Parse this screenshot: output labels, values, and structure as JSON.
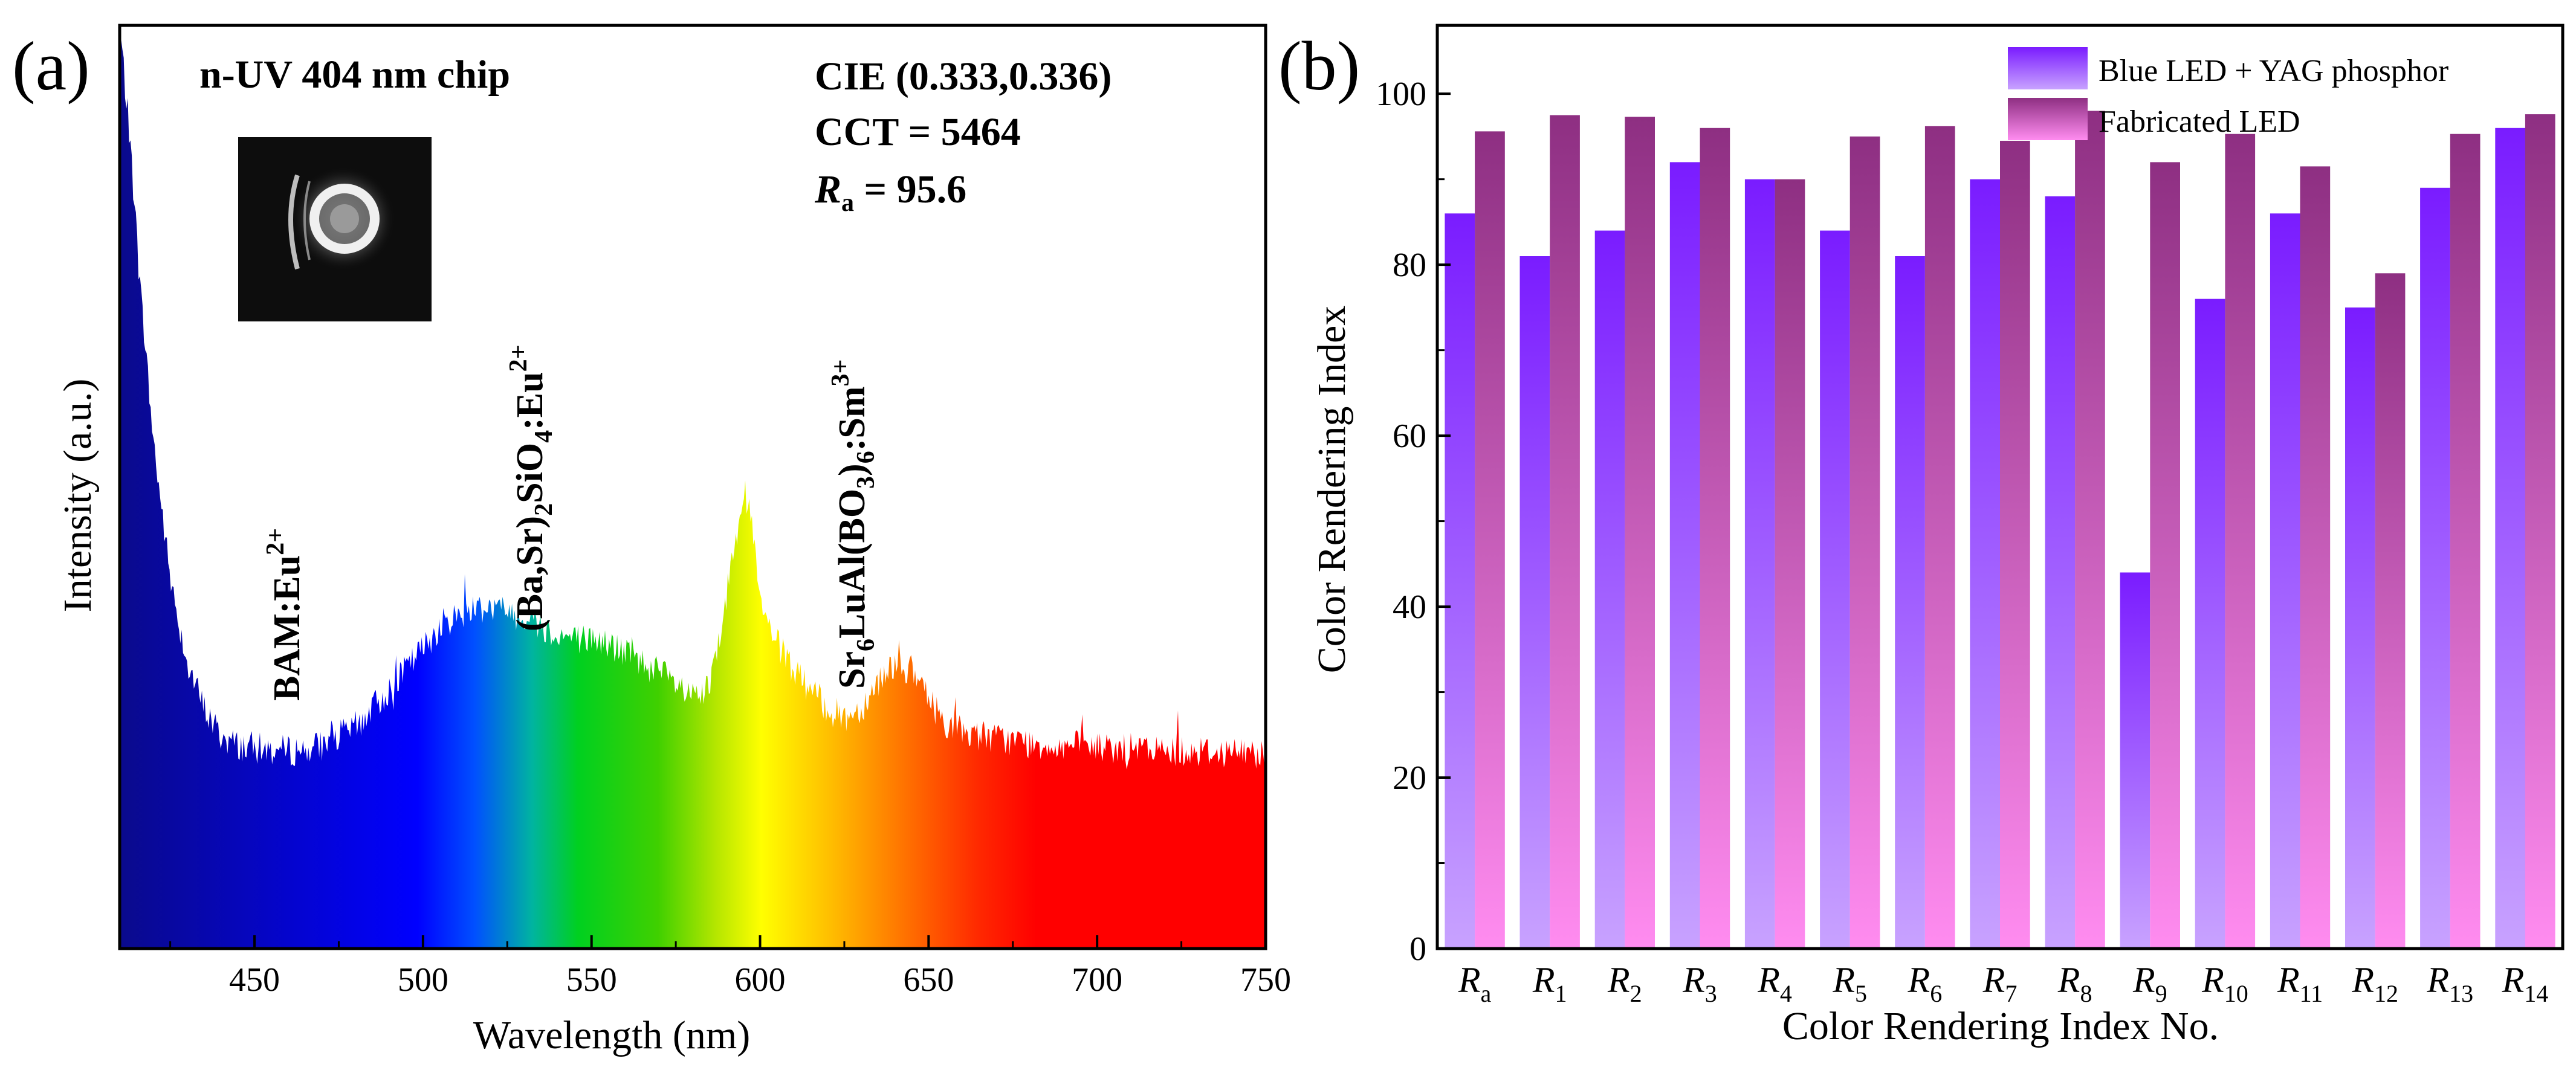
{
  "chart_data": [
    {
      "type": "line",
      "panel_label": "(a)",
      "title": "n-UV 404 nm chip",
      "xlabel": "Wavelength (nm)",
      "ylabel": "Intensity (a.u.)",
      "xlim": [
        410,
        750
      ],
      "xticks": [
        450,
        500,
        550,
        600,
        650,
        700,
        750
      ],
      "info": {
        "cie": "CIE (0.333,0.336)",
        "cct": "CCT = 5464",
        "ra_symbol": "R",
        "ra_sub": "a",
        "ra_value": " = 95.6"
      },
      "peaks": [
        {
          "label_main": "BAM:Eu",
          "label_sup": "2+"
        },
        {
          "label_main": "(Ba,Sr)",
          "label_sub1": "2",
          "label_mid": "SiO",
          "label_sub2": "4",
          "label_end": ":Eu",
          "label_sup": "2+"
        },
        {
          "label_main": "Sr",
          "label_sub1": "6",
          "label_mid": "LuAl(BO",
          "label_sub2": "3",
          "label_paren": ")",
          "label_sub3": "6",
          "label_end": ":Sm",
          "label_sup": "3+"
        }
      ],
      "series": [
        {
          "name": "emission spectrum",
          "x": [
            410,
            413,
            416,
            420,
            425,
            430,
            435,
            440,
            445,
            450,
            455,
            460,
            465,
            470,
            480,
            490,
            500,
            505,
            510,
            515,
            520,
            525,
            530,
            535,
            540,
            545,
            550,
            555,
            560,
            565,
            570,
            575,
            580,
            585,
            590,
            593,
            595,
            598,
            600,
            605,
            610,
            615,
            620,
            625,
            630,
            635,
            640,
            645,
            650,
            655,
            660,
            670,
            680,
            690,
            700,
            710,
            720,
            730,
            740,
            750
          ],
          "y": [
            1.0,
            0.88,
            0.72,
            0.55,
            0.4,
            0.31,
            0.26,
            0.23,
            0.22,
            0.218,
            0.215,
            0.214,
            0.216,
            0.22,
            0.24,
            0.28,
            0.325,
            0.35,
            0.36,
            0.37,
            0.37,
            0.365,
            0.36,
            0.35,
            0.34,
            0.335,
            0.335,
            0.33,
            0.32,
            0.31,
            0.3,
            0.285,
            0.27,
            0.28,
            0.38,
            0.46,
            0.5,
            0.45,
            0.37,
            0.33,
            0.3,
            0.28,
            0.26,
            0.25,
            0.26,
            0.29,
            0.31,
            0.3,
            0.27,
            0.245,
            0.235,
            0.228,
            0.222,
            0.22,
            0.218,
            0.216,
            0.215,
            0.214,
            0.213,
            0.212
          ]
        }
      ]
    },
    {
      "type": "bar",
      "panel_label": "(b)",
      "xlabel": "Color Rendering Index No.",
      "ylabel": "Color Rendering Index",
      "ylim": [
        0,
        108
      ],
      "yticks": [
        0,
        20,
        40,
        60,
        80,
        100
      ],
      "categories": [
        {
          "sym": "R",
          "sub": "a"
        },
        {
          "sym": "R",
          "sub": "1"
        },
        {
          "sym": "R",
          "sub": "2"
        },
        {
          "sym": "R",
          "sub": "3"
        },
        {
          "sym": "R",
          "sub": "4"
        },
        {
          "sym": "R",
          "sub": "5"
        },
        {
          "sym": "R",
          "sub": "6"
        },
        {
          "sym": "R",
          "sub": "7"
        },
        {
          "sym": "R",
          "sub": "8"
        },
        {
          "sym": "R",
          "sub": "9"
        },
        {
          "sym": "R",
          "sub": "10"
        },
        {
          "sym": "R",
          "sub": "11"
        },
        {
          "sym": "R",
          "sub": "12"
        },
        {
          "sym": "R",
          "sub": "13"
        },
        {
          "sym": "R",
          "sub": "14"
        }
      ],
      "series": [
        {
          "name": "Blue LED + YAG phosphor",
          "color_top": "#7a1cff",
          "color_bottom": "#c8a2ff",
          "values": [
            86,
            81,
            84,
            92,
            90,
            84,
            81,
            90,
            88,
            44,
            76,
            86,
            75,
            89,
            96
          ]
        },
        {
          "name": "Fabricated LED",
          "color_top": "#8e2f82",
          "color_bottom": "#ff8cf0",
          "values": [
            95.6,
            97.5,
            97.3,
            96,
            90,
            95,
            96.2,
            94.5,
            98,
            92,
            95.3,
            91.5,
            79,
            95.3,
            97.6
          ]
        }
      ],
      "legend_position": "top-right"
    }
  ]
}
